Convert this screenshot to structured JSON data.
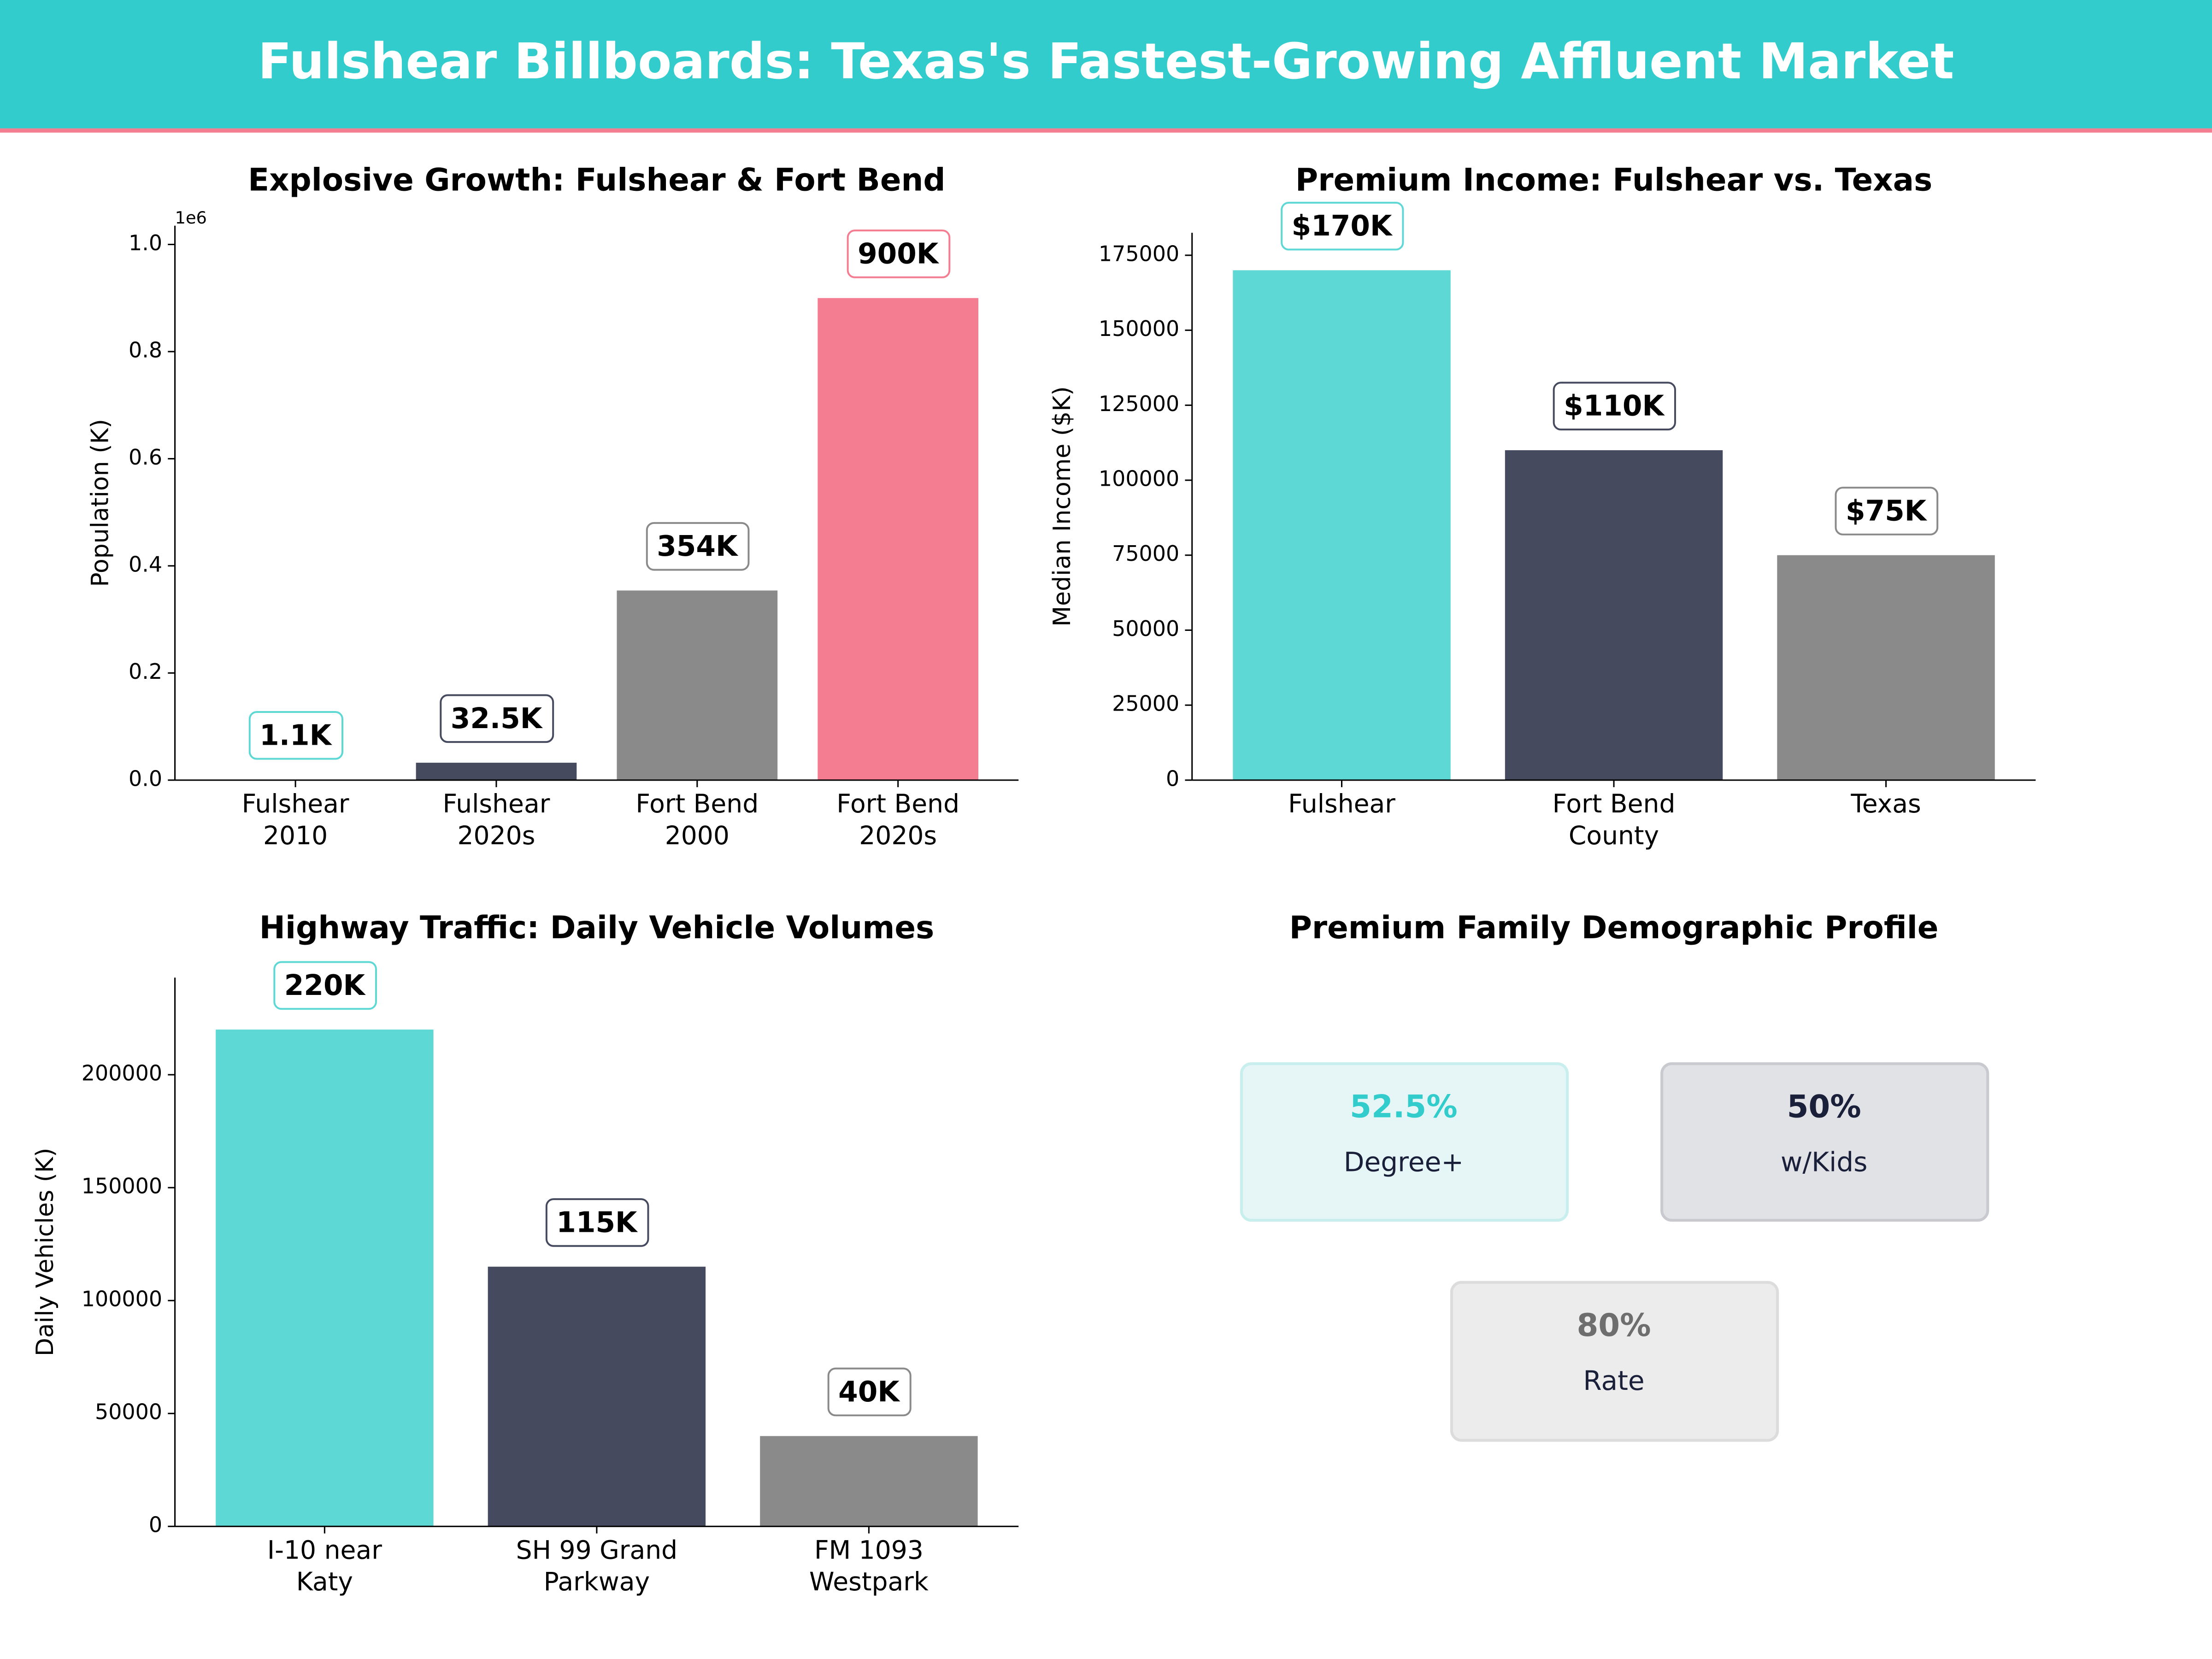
{
  "header": {
    "title": "Fulshear Billboards: Texas's Fastest-Growing Affluent Market"
  },
  "chart_data": [
    {
      "type": "bar",
      "title": "Explosive Growth: Fulshear & Fort Bend",
      "ylabel": "Population (K)",
      "y_offset_label": "1e6",
      "categories": [
        "Fulshear\n2010",
        "Fulshear\n2020s",
        "Fort Bend\n2000",
        "Fort Bend\n2020s"
      ],
      "values": [
        1100,
        32500,
        354000,
        900000
      ],
      "value_labels": [
        "1.1K",
        "32.5K",
        "354K",
        "900K"
      ],
      "colors": [
        "#5dd8d5",
        "#464a5f",
        "#8a8a8a",
        "#f57d91"
      ],
      "ylim": [
        0,
        1035000
      ],
      "yticks": [
        {
          "value": 0,
          "label": "0.0"
        },
        {
          "value": 200000,
          "label": "0.2"
        },
        {
          "value": 400000,
          "label": "0.4"
        },
        {
          "value": 600000,
          "label": "0.6"
        },
        {
          "value": 800000,
          "label": "0.8"
        },
        {
          "value": 1000000,
          "label": "1.0"
        }
      ]
    },
    {
      "type": "bar",
      "title": "Premium Income: Fulshear vs. Texas",
      "ylabel": "Median Income ($K)",
      "categories": [
        "Fulshear",
        "Fort Bend\nCounty",
        "Texas"
      ],
      "values": [
        170000,
        110000,
        75000
      ],
      "value_labels": [
        "$170K",
        "$110K",
        "$75K"
      ],
      "colors": [
        "#5dd8d5",
        "#464a5f",
        "#8a8a8a"
      ],
      "ylim": [
        0,
        182500
      ],
      "yticks": [
        0,
        25000,
        50000,
        75000,
        100000,
        125000,
        150000,
        175000
      ]
    },
    {
      "type": "bar",
      "title": "Highway Traffic: Daily Vehicle Volumes",
      "ylabel": "Daily Vehicles (K)",
      "categories": [
        "I-10 near\nKaty",
        "SH 99 Grand\nParkway",
        "FM 1093\nWestpark"
      ],
      "values": [
        220000,
        115000,
        40000
      ],
      "value_labels": [
        "220K",
        "115K",
        "40K"
      ],
      "colors": [
        "#5dd8d5",
        "#464a5f",
        "#8a8a8a"
      ],
      "ylim": [
        0,
        243000
      ],
      "yticks": [
        0,
        50000,
        100000,
        150000,
        200000
      ]
    }
  ],
  "profile": {
    "title": "Premium Family Demographic Profile",
    "cards": [
      {
        "value": "52.5%",
        "label": "Degree+"
      },
      {
        "value": "50%",
        "label": "w/Kids"
      },
      {
        "value": "80%",
        "label": "Rate"
      }
    ]
  }
}
